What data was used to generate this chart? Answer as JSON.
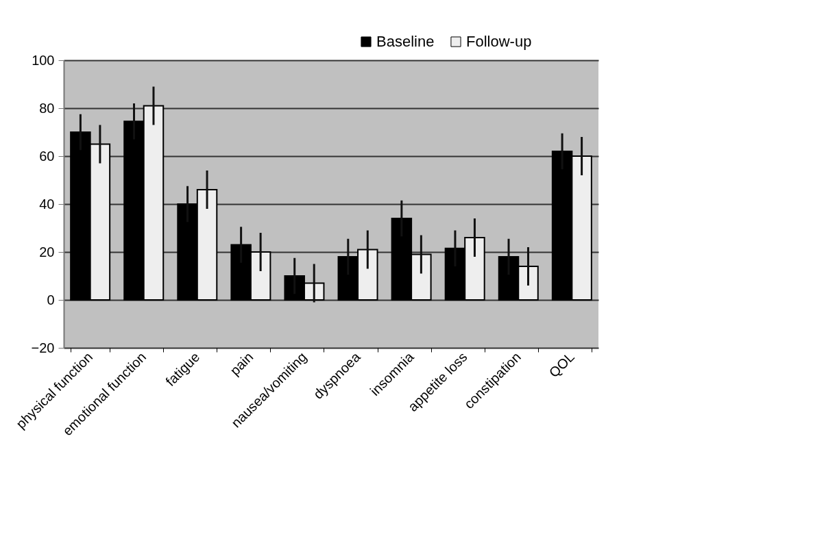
{
  "chart_data": {
    "type": "bar",
    "categories": [
      "physical function",
      "emotional function",
      "fatigue",
      "pain",
      "nausea/vomiting",
      "dyspnoea",
      "insomnia",
      "appetite loss",
      "constipation",
      "QOL"
    ],
    "series": [
      {
        "name": "Baseline",
        "color": "#000000",
        "values": [
          70,
          74.5,
          40,
          23,
          10,
          18,
          34,
          21.5,
          18,
          62
        ],
        "errors": [
          7.5,
          7.5,
          7.5,
          7.5,
          7.5,
          7.5,
          7.5,
          7.5,
          7.5,
          7.5
        ]
      },
      {
        "name": "Follow-up",
        "color": "#eeeeee",
        "values": [
          65,
          81,
          46,
          20,
          7,
          21,
          19,
          26,
          14,
          60
        ],
        "errors": [
          8,
          8,
          8,
          8,
          8,
          8,
          8,
          8,
          8,
          8
        ]
      }
    ],
    "ylim": [
      -20,
      100
    ],
    "yticks": [
      -20,
      0,
      20,
      40,
      60,
      80,
      100
    ],
    "grid": "y",
    "legend": "top right"
  }
}
